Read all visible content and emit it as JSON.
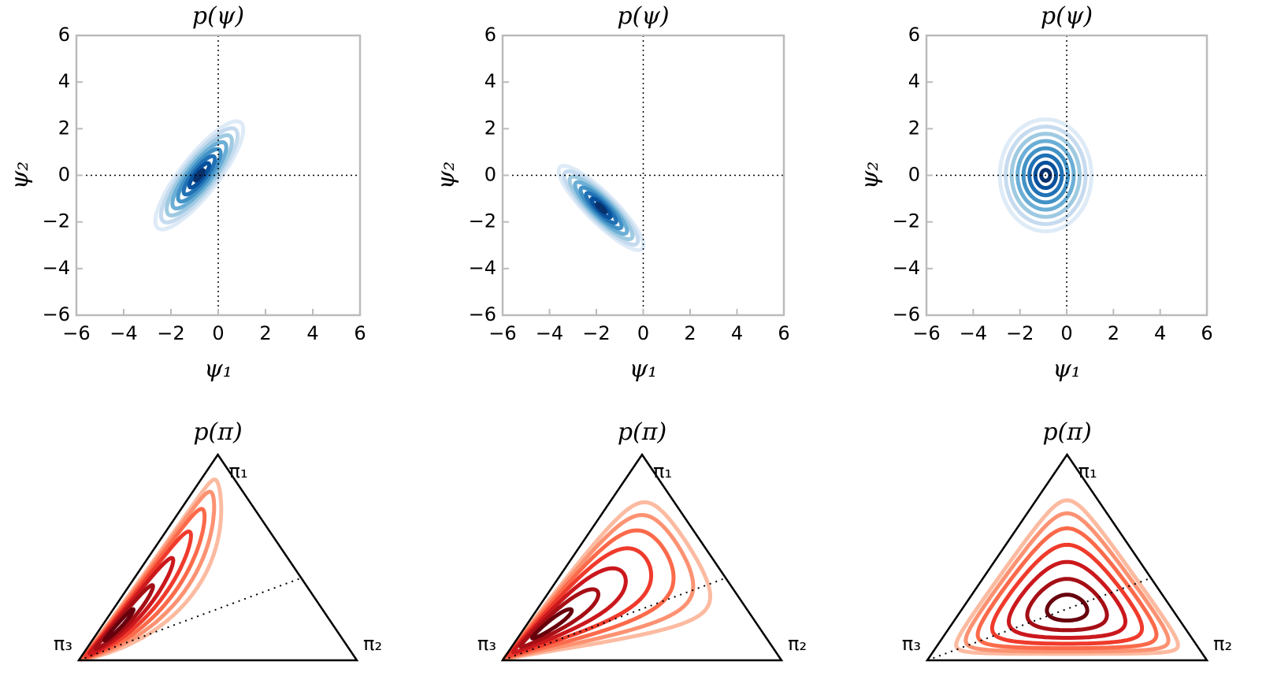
{
  "chart_data": [
    {
      "type": "contour",
      "title": "p(ψ)",
      "xlabel": "ψ₁",
      "ylabel": "ψ₂",
      "mean": [
        -0.8,
        0
      ],
      "cov": [
        [
          0.36,
          0.38
        ],
        [
          0.38,
          0.56
        ]
      ],
      "levels": [
        0.3,
        0.7,
        1.1,
        1.5,
        1.9,
        2.3,
        2.7,
        3.1
      ],
      "colors": [
        "#08306b",
        "#08519c",
        "#2171b5",
        "#4292c6",
        "#6baed6",
        "#9ecae1",
        "#c6dbef",
        "#deebf7"
      ],
      "reference_lines": {
        "x": 0,
        "y": 0
      },
      "xlim": [
        -6,
        6
      ],
      "ylim": [
        -6,
        6
      ],
      "xticks": [
        {
          "value": -6,
          "label": "−6"
        },
        {
          "value": -4,
          "label": "−4"
        },
        {
          "value": -2,
          "label": "−2"
        },
        0,
        2,
        4,
        6
      ],
      "yticks": [
        {
          "value": -6,
          "label": "−6"
        },
        {
          "value": -4,
          "label": "−4"
        },
        {
          "value": -2,
          "label": "−2"
        },
        0,
        2,
        4,
        6
      ]
    },
    {
      "type": "contour",
      "title": "p(ψ)",
      "xlabel": "ψ₁",
      "ylabel": "ψ₂",
      "mean": [
        -1.8,
        -1.4
      ],
      "cov": [
        [
          0.34,
          -0.3
        ],
        [
          -0.3,
          0.34
        ]
      ],
      "levels": [
        0.3,
        0.7,
        1.1,
        1.5,
        1.9,
        2.3,
        2.7,
        3.1
      ],
      "colors": [
        "#08306b",
        "#08519c",
        "#2171b5",
        "#4292c6",
        "#6baed6",
        "#9ecae1",
        "#c6dbef",
        "#deebf7"
      ],
      "reference_lines": {
        "x": 0,
        "y": 0
      },
      "xlim": [
        -6,
        6
      ],
      "ylim": [
        -6,
        6
      ],
      "xticks": [
        {
          "value": -6,
          "label": "−6"
        },
        {
          "value": -4,
          "label": "−4"
        },
        {
          "value": -2,
          "label": "−2"
        },
        0,
        2,
        4,
        6
      ],
      "yticks": [
        {
          "value": -6,
          "label": "−6"
        },
        {
          "value": -4,
          "label": "−4"
        },
        {
          "value": -2,
          "label": "−2"
        },
        0,
        2,
        4,
        6
      ]
    },
    {
      "type": "contour",
      "title": "p(ψ)",
      "xlabel": "ψ₁",
      "ylabel": "ψ₂",
      "mean": [
        -0.9,
        0
      ],
      "cov": [
        [
          0.4,
          0
        ],
        [
          0,
          0.6
        ]
      ],
      "levels": [
        0.3,
        0.7,
        1.1,
        1.5,
        1.9,
        2.3,
        2.7,
        3.1
      ],
      "colors": [
        "#08306b",
        "#08519c",
        "#2171b5",
        "#4292c6",
        "#6baed6",
        "#9ecae1",
        "#c6dbef",
        "#deebf7"
      ],
      "reference_lines": {
        "x": 0,
        "y": 0
      },
      "xlim": [
        -6,
        6
      ],
      "ylim": [
        -6,
        6
      ],
      "xticks": [
        {
          "value": -6,
          "label": "−6"
        },
        {
          "value": -4,
          "label": "−4"
        },
        {
          "value": -2,
          "label": "−2"
        },
        0,
        2,
        4,
        6
      ],
      "yticks": [
        {
          "value": -6,
          "label": "−6"
        },
        {
          "value": -4,
          "label": "−4"
        },
        {
          "value": -2,
          "label": "−2"
        },
        0,
        2,
        4,
        6
      ]
    },
    {
      "type": "ternary",
      "title": "p(π)",
      "corner_labels": [
        "π₁",
        "π₂",
        "π₃"
      ],
      "mean": [
        -1.6,
        -2.6
      ],
      "cov": [
        [
          2.2,
          1.3
        ],
        [
          1.3,
          1.0
        ]
      ],
      "levels": [
        0.4,
        0.8,
        1.2,
        1.6,
        2.0,
        2.4,
        2.8
      ],
      "colors": [
        "#67000d",
        "#a50f15",
        "#cb181d",
        "#ef3b2c",
        "#fb6a4a",
        "#fc9272",
        "#fcbba1"
      ]
    },
    {
      "type": "ternary",
      "title": "p(π)",
      "corner_labels": [
        "π₁",
        "π₂",
        "π₃"
      ],
      "mean": [
        -1.5,
        -2.2
      ],
      "cov": [
        [
          2.0,
          1.9
        ],
        [
          1.9,
          2.3
        ]
      ],
      "levels": [
        0.4,
        0.8,
        1.2,
        1.6,
        2.0,
        2.4,
        2.8
      ],
      "colors": [
        "#67000d",
        "#a50f15",
        "#cb181d",
        "#ef3b2c",
        "#fb6a4a",
        "#fc9272",
        "#fcbba1"
      ]
    },
    {
      "type": "ternary",
      "title": "p(π)",
      "corner_labels": [
        "π₁",
        "π₂",
        "π₃"
      ],
      "mean": [
        -0.4,
        0
      ],
      "cov": [
        [
          0.6,
          0.3
        ],
        [
          0.3,
          0.6
        ]
      ],
      "levels": [
        0.5,
        1.0,
        1.5,
        2.0,
        2.5,
        3.0,
        3.5
      ],
      "colors": [
        "#67000d",
        "#a50f15",
        "#cb181d",
        "#ef3b2c",
        "#fb6a4a",
        "#fc9272",
        "#fcbba1"
      ]
    }
  ]
}
